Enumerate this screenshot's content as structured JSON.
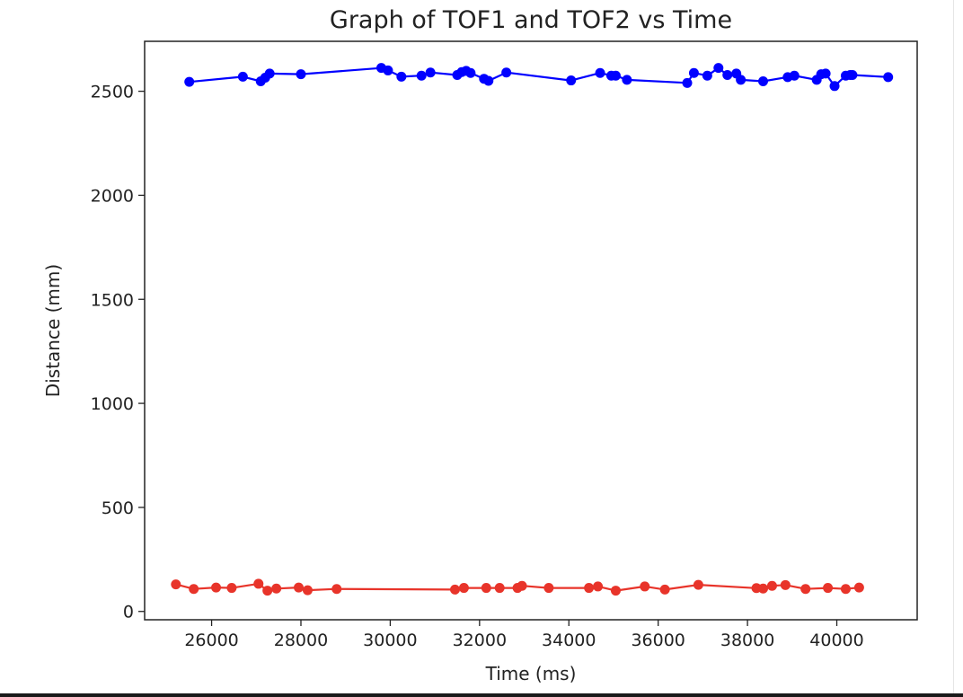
{
  "chart_data": {
    "type": "line",
    "title": "Graph of TOF1 and TOF2 vs Time",
    "xlabel": "Time (ms)",
    "ylabel": "Distance (mm)",
    "xlim": [
      24500,
      41800
    ],
    "ylim": [
      -40,
      2740
    ],
    "xticks": [
      26000,
      28000,
      30000,
      32000,
      34000,
      36000,
      38000,
      40000
    ],
    "yticks": [
      0,
      500,
      1000,
      1500,
      2000,
      2500
    ],
    "grid": false,
    "legend": "none",
    "series": [
      {
        "color": "#0000ff",
        "marker": "circle",
        "x": [
          25500,
          26700,
          27100,
          27200,
          27300,
          28000,
          29800,
          29950,
          30250,
          30700,
          30900,
          31500,
          31600,
          31700,
          31800,
          32100,
          32200,
          32600,
          34050,
          34700,
          34950,
          35050,
          35300,
          36650,
          36800,
          37100,
          37350,
          37550,
          37750,
          37850,
          38350,
          38900,
          39050,
          39550,
          39650,
          39750,
          39950,
          40200,
          40300,
          40350,
          41150
        ],
        "y": [
          2545,
          2570,
          2548,
          2565,
          2585,
          2582,
          2612,
          2600,
          2570,
          2575,
          2590,
          2578,
          2592,
          2598,
          2588,
          2560,
          2550,
          2590,
          2552,
          2588,
          2575,
          2575,
          2555,
          2540,
          2588,
          2575,
          2612,
          2578,
          2585,
          2555,
          2548,
          2568,
          2575,
          2555,
          2582,
          2585,
          2525,
          2575,
          2578,
          2578,
          2568
        ]
      },
      {
        "color": "#e8342a",
        "marker": "circle",
        "x": [
          25200,
          25600,
          26100,
          26450,
          27050,
          27250,
          27450,
          27950,
          28150,
          28800,
          31450,
          31650,
          32150,
          32450,
          32850,
          32950,
          33550,
          34450,
          34650,
          35050,
          35700,
          36150,
          36900,
          38200,
          38350,
          38550,
          38850,
          39300,
          39800,
          40200,
          40500
        ],
        "y": [
          130,
          108,
          115,
          113,
          133,
          100,
          110,
          115,
          102,
          108,
          105,
          113,
          113,
          113,
          113,
          123,
          113,
          113,
          120,
          100,
          120,
          105,
          128,
          112,
          110,
          123,
          127,
          108,
          113,
          108,
          115
        ]
      }
    ]
  }
}
